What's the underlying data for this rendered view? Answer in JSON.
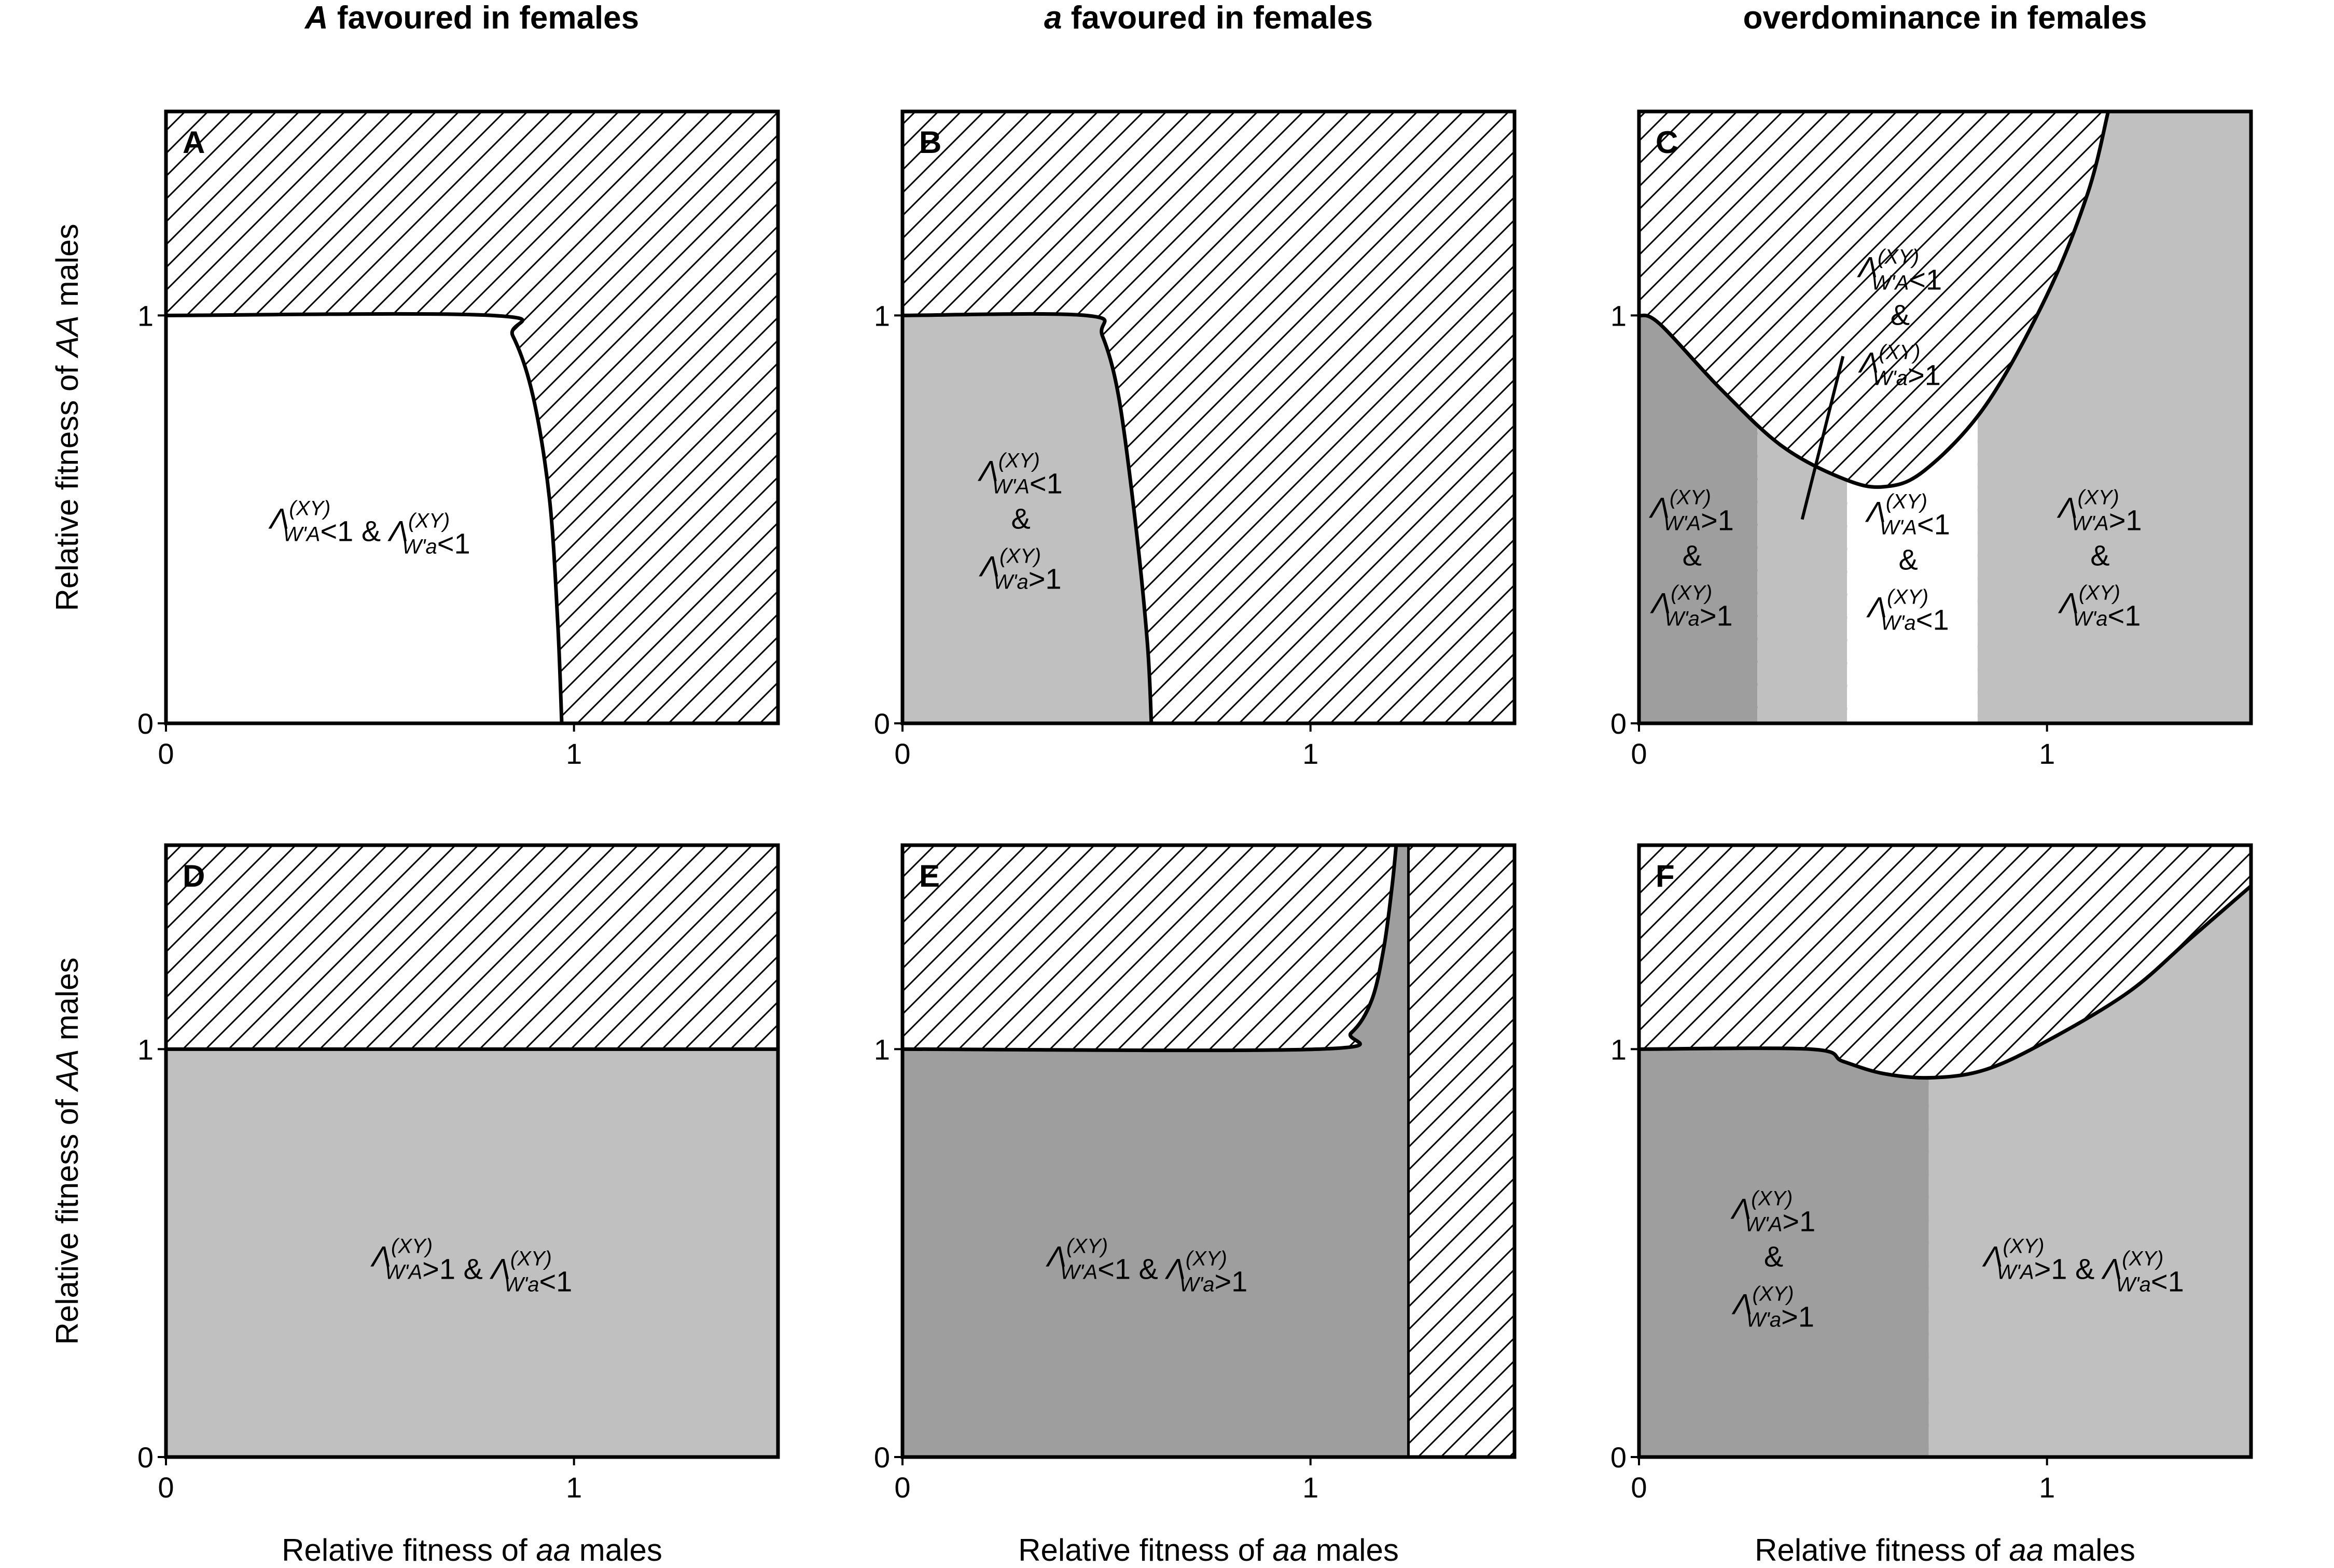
{
  "column_titles": [
    {
      "italic": "A",
      "rest": " favoured in females"
    },
    {
      "italic": "a",
      "rest": " favoured in females"
    },
    {
      "italic": "",
      "rest": "overdominance in females"
    }
  ],
  "axes": {
    "x_label": {
      "text": "Relative fitness of ",
      "italic": "aa",
      "suffix": " males"
    },
    "y_label": {
      "text": "Relative fitness of ",
      "italic": "AA",
      "suffix": " males"
    },
    "x_ticks": [
      "0",
      "1"
    ],
    "y_ticks": [
      "0",
      "1"
    ],
    "xlim": [
      0,
      1.5
    ],
    "ylim": [
      0,
      1.5
    ]
  },
  "colors": {
    "light_gray": "#c0c0c0",
    "dark_gray": "#9e9e9e",
    "white": "#ffffff",
    "hatch": "#000000"
  },
  "chart_data": [
    {
      "type": "region-map",
      "panel": "A",
      "boundary": {
        "x": [
          0,
          0.8,
          0.85,
          0.9,
          0.94,
          0.96,
          0.97
        ],
        "y": [
          1,
          1,
          0.95,
          0.8,
          0.55,
          0.25,
          0
        ]
      },
      "fills": {
        "below_boundary": "white",
        "above_boundary": "hatched"
      },
      "labels": [
        {
          "text": "Λ(XY)W'A<1 & Λ(XY)W'a<1",
          "lines": [
            "Λ<sup>(XY)</sup><sub>W'A</sub><1 & Λ<sup>(XY)</sup><sub>W'a</sub><1"
          ],
          "x": 0.5,
          "y": 0.5
        }
      ]
    },
    {
      "type": "region-map",
      "panel": "B",
      "boundary": {
        "x": [
          0,
          0.45,
          0.49,
          0.53,
          0.57,
          0.6,
          0.61
        ],
        "y": [
          1,
          1,
          0.95,
          0.8,
          0.5,
          0.2,
          0
        ]
      },
      "fills": {
        "below_boundary": "light_gray",
        "above_boundary": "hatched"
      },
      "labels": [
        {
          "lines": [
            "Λ(XY)W'A<1",
            "&",
            "Λ(XY)W'a>1"
          ],
          "x": 0.29,
          "y": 0.5
        }
      ]
    },
    {
      "type": "region-map",
      "panel": "C",
      "boundary": {
        "x": [
          0,
          0.05,
          0.2,
          0.35,
          0.5,
          0.6,
          0.7,
          0.85,
          1.0,
          1.1,
          1.15
        ],
        "y": [
          1,
          0.98,
          0.82,
          0.68,
          0.6,
          0.58,
          0.62,
          0.78,
          1.05,
          1.3,
          1.5
        ]
      },
      "vertical_bands": [
        {
          "x_from": 0,
          "x_to": 0.29,
          "fill": "dark_gray"
        },
        {
          "x_from": 0.29,
          "x_to": 0.51,
          "fill": "light_gray"
        },
        {
          "x_from": 0.51,
          "x_to": 0.83,
          "fill": "white"
        },
        {
          "x_from": 0.83,
          "x_to": 1.5,
          "fill": "light_gray"
        }
      ],
      "fills": {
        "above_boundary": "hatched"
      },
      "pointer": {
        "x1": 0.4,
        "y1": 0.5,
        "x2": 0.5,
        "y2": 0.9
      },
      "labels": [
        {
          "lines": [
            "Λ(XY)W'A<1",
            "&",
            "Λ(XY)W'a>1"
          ],
          "x": 0.64,
          "y": 1.0
        },
        {
          "lines": [
            "Λ(XY)W'A>1",
            "&",
            "Λ(XY)W'a>1"
          ],
          "x": 0.13,
          "y": 0.41
        },
        {
          "lines": [
            "Λ(XY)W'A<1",
            "&",
            "Λ(XY)W'a<1"
          ],
          "x": 0.66,
          "y": 0.4
        },
        {
          "lines": [
            "Λ(XY)W'A>1",
            "&",
            "Λ(XY)W'a<1"
          ],
          "x": 1.13,
          "y": 0.41
        }
      ]
    },
    {
      "type": "region-map",
      "panel": "D",
      "boundary": {
        "x": [
          0,
          1.5
        ],
        "y": [
          1,
          1
        ]
      },
      "fills": {
        "below_boundary": "light_gray",
        "above_boundary": "hatched"
      },
      "labels": [
        {
          "lines": [
            "Λ(XY)W'A>1 & Λ(XY)W'a<1"
          ],
          "x": 0.75,
          "y": 0.49
        }
      ]
    },
    {
      "type": "region-map",
      "panel": "E",
      "boundary": {
        "x": [
          0,
          1.02,
          1.1,
          1.15,
          1.18,
          1.2,
          1.21
        ],
        "y": [
          1,
          1,
          1.04,
          1.12,
          1.25,
          1.4,
          1.5
        ]
      },
      "vertical_line": {
        "x": 1.24
      },
      "fills": {
        "below_boundary": "dark_gray",
        "above_boundary": "hatched",
        "right_of_line": "hatched"
      },
      "labels": [
        {
          "lines": [
            "Λ(XY)W'A<1 & Λ(XY)W'a>1"
          ],
          "x": 0.6,
          "y": 0.49
        }
      ]
    },
    {
      "type": "region-map",
      "panel": "F",
      "boundary": {
        "x": [
          0,
          0.42,
          0.5,
          0.6,
          0.72,
          0.85,
          1.0,
          1.2,
          1.35,
          1.5
        ],
        "y": [
          1,
          1,
          0.97,
          0.94,
          0.93,
          0.95,
          1.02,
          1.14,
          1.27,
          1.4
        ]
      },
      "vertical_bands": [
        {
          "x_from": 0,
          "x_to": 0.71,
          "fill": "dark_gray"
        },
        {
          "x_from": 0.71,
          "x_to": 1.5,
          "fill": "light_gray"
        }
      ],
      "fills": {
        "above_boundary": "hatched"
      },
      "labels": [
        {
          "lines": [
            "Λ(XY)W'A>1",
            "&",
            "Λ(XY)W'a>1"
          ],
          "x": 0.33,
          "y": 0.49
        },
        {
          "lines": [
            "Λ(XY)W'A>1 & Λ(XY)W'a<1"
          ],
          "x": 1.09,
          "y": 0.49
        }
      ]
    }
  ]
}
